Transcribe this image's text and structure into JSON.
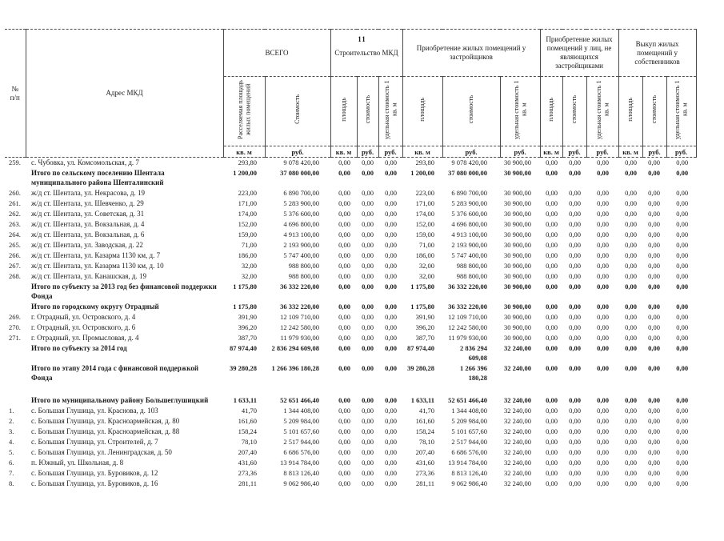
{
  "page": {
    "number": "11"
  },
  "table": {
    "columns": {
      "num_header": [
        "№",
        "п/п"
      ],
      "address": "Адрес МКД",
      "groups": [
        {
          "label": "ВСЕГО",
          "sub": [
            "Расселяемая площадь жилых помещений",
            "Стоимость"
          ],
          "units": [
            "кв. м",
            "руб."
          ]
        },
        {
          "label": "Строительство МКД",
          "sub": [
            "площадь",
            "стоимость",
            "удельная стоимость 1 кв. м"
          ],
          "units": [
            "кв. м",
            "руб.",
            "руб."
          ]
        },
        {
          "label": "Приобретение жилых помещений у застройщиков",
          "sub": [
            "площадь",
            "стоимость",
            "удельная стоимость 1 кв. м"
          ],
          "units": [
            "кв. м",
            "руб.",
            "руб."
          ]
        },
        {
          "label": "Приобретение жилых помещений у лиц, не являющихся застройщиками",
          "sub": [
            "площадь",
            "стоимость",
            "удельная стоимость 1 кв. м"
          ],
          "units": [
            "кв. м",
            "руб.",
            "руб."
          ]
        },
        {
          "label": "Выкуп жилых помещений у собственников",
          "sub": [
            "площадь",
            "стоимость",
            "удельная стоимость 1 кв. м"
          ],
          "units": [
            "кв. м",
            "руб.",
            "руб."
          ]
        }
      ]
    },
    "rows": [
      {
        "num": "259.",
        "address": "с. Чубовка, ул. Комсомольская, д. 7",
        "bold": false,
        "values": [
          "293,80",
          "9 078 420,00",
          "0,00",
          "0,00",
          "0,00",
          "293,80",
          "9 078 420,00",
          "30 900,00",
          "0,00",
          "0,00",
          "0,00",
          "0,00",
          "0,00",
          "0,00"
        ]
      },
      {
        "num": "",
        "address": "Итого по сельскому поселению  Шентала муниципального района Шенталинский",
        "bold": true,
        "values": [
          "1 200,00",
          "37 080 000,00",
          "0,00",
          "0,00",
          "0,00",
          "1 200,00",
          "37 080 000,00",
          "30 900,00",
          "0,00",
          "0,00",
          "0,00",
          "0,00",
          "0,00",
          "0,00"
        ]
      },
      {
        "num": "260.",
        "address": "ж/д ст.  Шентала, ул.  Некрасова, д. 19",
        "bold": false,
        "values": [
          "223,00",
          "6 890 700,00",
          "0,00",
          "0,00",
          "0,00",
          "223,00",
          "6 890 700,00",
          "30 900,00",
          "0,00",
          "0,00",
          "0,00",
          "0,00",
          "0,00",
          "0,00"
        ]
      },
      {
        "num": "261.",
        "address": "ж/д ст. Шентала, ул.  Шевченко, д. 29",
        "bold": false,
        "values": [
          "171,00",
          "5 283 900,00",
          "0,00",
          "0,00",
          "0,00",
          "171,00",
          "5 283 900,00",
          "30 900,00",
          "0,00",
          "0,00",
          "0,00",
          "0,00",
          "0,00",
          "0,00"
        ]
      },
      {
        "num": "262.",
        "address": "ж/д ст.  Шентала, ул. Советская, д. 31",
        "bold": false,
        "values": [
          "174,00",
          "5 376 600,00",
          "0,00",
          "0,00",
          "0,00",
          "174,00",
          "5 376 600,00",
          "30 900,00",
          "0,00",
          "0,00",
          "0,00",
          "0,00",
          "0,00",
          "0,00"
        ]
      },
      {
        "num": "263.",
        "address": "ж/д ст.  Шентала, ул. Вокзальная, д. 4",
        "bold": false,
        "values": [
          "152,00",
          "4 696 800,00",
          "0,00",
          "0,00",
          "0,00",
          "152,00",
          "4 696 800,00",
          "30 900,00",
          "0,00",
          "0,00",
          "0,00",
          "0,00",
          "0,00",
          "0,00"
        ]
      },
      {
        "num": "264.",
        "address": "ж/д ст.  Шентала, ул. Вокзальная, д. 6",
        "bold": false,
        "values": [
          "159,00",
          "4 913 100,00",
          "0,00",
          "0,00",
          "0,00",
          "159,00",
          "4 913 100,00",
          "30 900,00",
          "0,00",
          "0,00",
          "0,00",
          "0,00",
          "0,00",
          "0,00"
        ]
      },
      {
        "num": "265.",
        "address": "ж/д ст.  Шентала, ул.  Заводская, д. 22",
        "bold": false,
        "values": [
          "71,00",
          "2 193 900,00",
          "0,00",
          "0,00",
          "0,00",
          "71,00",
          "2 193 900,00",
          "30 900,00",
          "0,00",
          "0,00",
          "0,00",
          "0,00",
          "0,00",
          "0,00"
        ]
      },
      {
        "num": "266.",
        "address": "ж/д ст.  Шентала, ул. Казарма 1130 км, д. 7",
        "bold": false,
        "values": [
          "186,00",
          "5 747 400,00",
          "0,00",
          "0,00",
          "0,00",
          "186,00",
          "5 747 400,00",
          "30 900,00",
          "0,00",
          "0,00",
          "0,00",
          "0,00",
          "0,00",
          "0,00"
        ]
      },
      {
        "num": "267.",
        "address": "ж/д ст.  Шентала, ул. Казарма 1130 км, д. 10",
        "bold": false,
        "values": [
          "32,00",
          "988 800,00",
          "0,00",
          "0,00",
          "0,00",
          "32,00",
          "988 800,00",
          "30 900,00",
          "0,00",
          "0,00",
          "0,00",
          "0,00",
          "0,00",
          "0,00"
        ]
      },
      {
        "num": "268.",
        "address": "ж/д ст.  Шентала, ул.  Канашская, д. 19",
        "bold": false,
        "values": [
          "32,00",
          "988 800,00",
          "0,00",
          "0,00",
          "0,00",
          "32,00",
          "988 800,00",
          "30 900,00",
          "0,00",
          "0,00",
          "0,00",
          "0,00",
          "0,00",
          "0,00"
        ]
      },
      {
        "num": "",
        "address": "Итого по субъекту за 2013 год без финансовой поддержки Фонда",
        "bold": true,
        "values": [
          "1 175,80",
          "36 332 220,00",
          "0,00",
          "0,00",
          "0,00",
          "1 175,80",
          "36 332 220,00",
          "30 900,00",
          "0,00",
          "0,00",
          "0,00",
          "0,00",
          "0,00",
          "0,00"
        ]
      },
      {
        "num": "",
        "address": "Итого по городскому округу  Отрадный",
        "bold": true,
        "values": [
          "1 175,80",
          "36 332 220,00",
          "0,00",
          "0,00",
          "0,00",
          "1 175,80",
          "36 332 220,00",
          "30 900,00",
          "0,00",
          "0,00",
          "0,00",
          "0,00",
          "0,00",
          "0,00"
        ]
      },
      {
        "num": "269.",
        "address": "г. Отрадный, ул. Островского, д. 4",
        "bold": false,
        "values": [
          "391,90",
          "12 109 710,00",
          "0,00",
          "0,00",
          "0,00",
          "391,90",
          "12 109 710,00",
          "30 900,00",
          "0,00",
          "0,00",
          "0,00",
          "0,00",
          "0,00",
          "0,00"
        ]
      },
      {
        "num": "270.",
        "address": "г. Отрадный, ул. Островского, д. 6",
        "bold": false,
        "values": [
          "396,20",
          "12 242 580,00",
          "0,00",
          "0,00",
          "0,00",
          "396,20",
          "12 242 580,00",
          "30 900,00",
          "0,00",
          "0,00",
          "0,00",
          "0,00",
          "0,00",
          "0,00"
        ]
      },
      {
        "num": "271.",
        "address": "г. Отрадный, ул. Промысловая, д. 4",
        "bold": false,
        "values": [
          "387,70",
          "11 979 930,00",
          "0,00",
          "0,00",
          "0,00",
          "387,70",
          "11 979 930,00",
          "30 900,00",
          "0,00",
          "0,00",
          "0,00",
          "0,00",
          "0,00",
          "0,00"
        ]
      },
      {
        "num": "",
        "address": "Итого  по субъекту за 2014 год",
        "bold": true,
        "values": [
          "87 974,40",
          "2 836 294 609,08",
          "0,00",
          "0,00",
          "0,00",
          "87 974,40",
          "2 836 294 609,08",
          "32 240,00",
          "0,00",
          "0,00",
          "0,00",
          "0,00",
          "0,00",
          "0,00"
        ]
      },
      {
        "num": "",
        "address": "Итого по этапу 2014 года с финансовой поддержкой Фонда",
        "bold": true,
        "values": [
          "39 280,28",
          "1 266 396 180,28",
          "0,00",
          "0,00",
          "0,00",
          "39 280,28",
          "1 266 396 180,28",
          "32 240,00",
          "0,00",
          "0,00",
          "0,00",
          "0,00",
          "0,00",
          "0,00"
        ]
      },
      {
        "spacer": true
      },
      {
        "num": "",
        "address": "Итого по муниципальному району Большеглушицкий",
        "bold": true,
        "values": [
          "1 633,11",
          "52 651 466,40",
          "0,00",
          "0,00",
          "0,00",
          "1 633,11",
          "52 651 466,40",
          "32 240,00",
          "0,00",
          "0,00",
          "0,00",
          "0,00",
          "0,00",
          "0,00"
        ]
      },
      {
        "num": "1.",
        "address": "с. Большая Глушица, ул. Краснова, д. 103",
        "bold": false,
        "values": [
          "41,70",
          "1 344 408,00",
          "0,00",
          "0,00",
          "0,00",
          "41,70",
          "1 344 408,00",
          "32 240,00",
          "0,00",
          "0,00",
          "0,00",
          "0,00",
          "0,00",
          "0,00"
        ]
      },
      {
        "num": "2.",
        "address": "с. Большая Глушица, ул. Красноармейская, д. 80",
        "bold": false,
        "values": [
          "161,60",
          "5 209 984,00",
          "0,00",
          "0,00",
          "0,00",
          "161,60",
          "5 209 984,00",
          "32 240,00",
          "0,00",
          "0,00",
          "0,00",
          "0,00",
          "0,00",
          "0,00"
        ]
      },
      {
        "num": "3.",
        "address": "с. Большая Глушица, ул. Красноармейская, д. 88",
        "bold": false,
        "values": [
          "158,24",
          "5 101 657,60",
          "0,00",
          "0,00",
          "0,00",
          "158,24",
          "5 101 657,60",
          "32 240,00",
          "0,00",
          "0,00",
          "0,00",
          "0,00",
          "0,00",
          "0,00"
        ]
      },
      {
        "num": "4.",
        "address": "с. Большая Глушица, ул. Строителей, д. 7",
        "bold": false,
        "values": [
          "78,10",
          "2 517 944,00",
          "0,00",
          "0,00",
          "0,00",
          "78,10",
          "2 517 944,00",
          "32 240,00",
          "0,00",
          "0,00",
          "0,00",
          "0,00",
          "0,00",
          "0,00"
        ]
      },
      {
        "num": "5.",
        "address": "с. Большая Глушица, ул. Ленинградская, д. 50",
        "bold": false,
        "values": [
          "207,40",
          "6 686 576,00",
          "0,00",
          "0,00",
          "0,00",
          "207,40",
          "6 686 576,00",
          "32 240,00",
          "0,00",
          "0,00",
          "0,00",
          "0,00",
          "0,00",
          "0,00"
        ]
      },
      {
        "num": "6.",
        "address": "п. Южный, ул. Школьная, д. 8",
        "bold": false,
        "values": [
          "431,60",
          "13 914 784,00",
          "0,00",
          "0,00",
          "0,00",
          "431,60",
          "13 914 784,00",
          "32 240,00",
          "0,00",
          "0,00",
          "0,00",
          "0,00",
          "0,00",
          "0,00"
        ]
      },
      {
        "num": "7.",
        "address": "с. Большая Глушица, ул. Буровиков, д. 12",
        "bold": false,
        "values": [
          "273,36",
          "8 813 126,40",
          "0,00",
          "0,00",
          "0,00",
          "273,36",
          "8 813 126,40",
          "32 240,00",
          "0,00",
          "0,00",
          "0,00",
          "0,00",
          "0,00",
          "0,00"
        ]
      },
      {
        "num": "8.",
        "address": "с. Большая Глушица, ул. Буровиков, д. 16",
        "bold": false,
        "values": [
          "281,11",
          "9 062 986,40",
          "0,00",
          "0,00",
          "0,00",
          "281,11",
          "9 062 986,40",
          "32 240,00",
          "0,00",
          "0,00",
          "0,00",
          "0,00",
          "0,00",
          "0,00"
        ]
      }
    ]
  }
}
